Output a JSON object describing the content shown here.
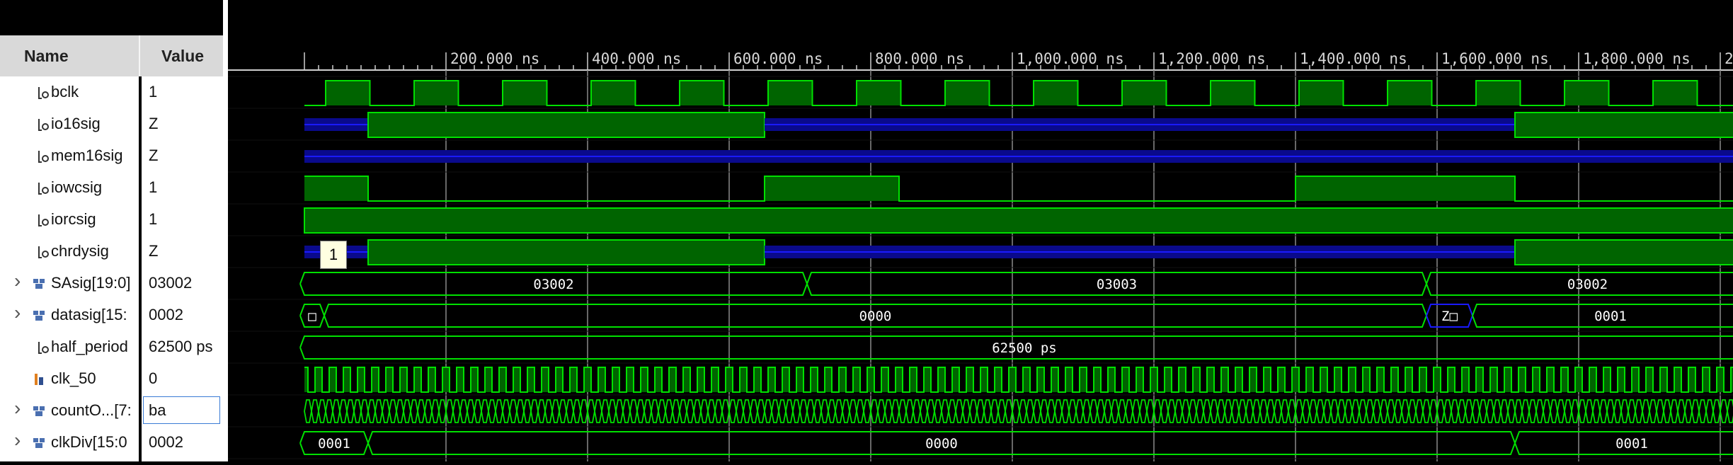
{
  "columns": {
    "name": "Name",
    "value": "Value"
  },
  "timeline": {
    "ticks": [
      "200.000 ns",
      "400.000 ns",
      "600.000 ns",
      "800.000 ns",
      "1,000.000 ns",
      "1,200.000 ns",
      "1,400.000 ns",
      "1,600.000 ns",
      "1,800.000 ns",
      "2,000.000 ns",
      "2"
    ]
  },
  "signals": [
    {
      "name": "bclk",
      "value": "1",
      "kind": "signal",
      "expandable": false
    },
    {
      "name": "io16sig",
      "value": "Z",
      "kind": "signal",
      "expandable": false
    },
    {
      "name": "mem16sig",
      "value": "Z",
      "kind": "signal",
      "expandable": false
    },
    {
      "name": "iowcsig",
      "value": "1",
      "kind": "signal",
      "expandable": false
    },
    {
      "name": "iorcsig",
      "value": "1",
      "kind": "signal",
      "expandable": false
    },
    {
      "name": "chrdysig",
      "value": "Z",
      "kind": "signal",
      "expandable": false
    },
    {
      "name": "SAsig[19:0]",
      "value": "03002",
      "kind": "bus",
      "expandable": true
    },
    {
      "name": "datasig[15:",
      "value": "0002",
      "kind": "bus",
      "expandable": true
    },
    {
      "name": "half_period",
      "value": "62500 ps",
      "kind": "signal",
      "expandable": false
    },
    {
      "name": "clk_50",
      "value": "0",
      "kind": "generated",
      "expandable": false
    },
    {
      "name": "countO...[7:",
      "value": "ba",
      "kind": "bus",
      "expandable": true,
      "selected": true
    },
    {
      "name": "clkDiv[15:0",
      "value": "0002",
      "kind": "bus",
      "expandable": true
    }
  ],
  "bus_labels": {
    "SAsig": [
      "03002",
      "03003",
      "03002"
    ],
    "datasig": [
      "0000",
      "Z",
      "0001"
    ],
    "half_period": [
      "62500 ps"
    ],
    "clkDiv": [
      "0001",
      "0000",
      "0001"
    ]
  },
  "tooltip": {
    "text": "1"
  },
  "colors": {
    "wave": "#00e000",
    "wave_fill": "#006400",
    "highz": "#1a1aff",
    "highz_fill": "#0a0a8c",
    "grid": "#8a8a8a",
    "ruler_text": "#d8d8d8"
  }
}
